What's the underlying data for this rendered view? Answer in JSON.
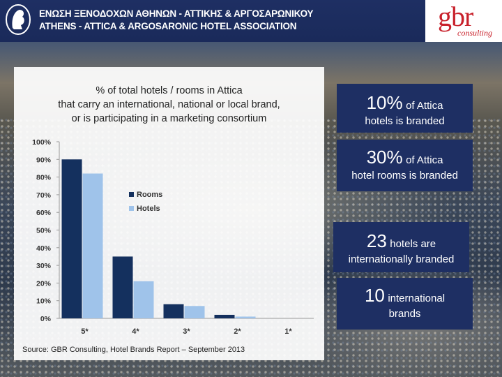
{
  "header": {
    "line1": "ΕΝΩΣΗ ΞΕΝΟΔΟΧΩΝ ΑΘΗΝΩΝ - ΑΤΤΙΚΗΣ & ΑΡΓΟΣΑΡΩΝΙΚΟΥ",
    "line2": "ATHENS - ATTICA & ARGOSARONIC HOTEL ASSOCIATION",
    "gbr_logo": "gbr",
    "gbr_sub": "consulting"
  },
  "chart_data": {
    "type": "bar",
    "title_lines": [
      "% of total hotels / rooms in Attica",
      "that carry an international, national or local brand,",
      "or is participating in a marketing consortium"
    ],
    "categories": [
      "5*",
      "4*",
      "3*",
      "2*",
      "1*"
    ],
    "series": [
      {
        "name": "Rooms",
        "values": [
          90,
          35,
          8,
          2,
          0
        ],
        "color": "#14305e"
      },
      {
        "name": "Hotels",
        "values": [
          82,
          21,
          7,
          1,
          0
        ],
        "color": "#9fc3ea"
      }
    ],
    "ylim": [
      0,
      100
    ],
    "yticks": [
      "0%",
      "10%",
      "20%",
      "30%",
      "40%",
      "50%",
      "60%",
      "70%",
      "80%",
      "90%",
      "100%"
    ],
    "legend": "top-center",
    "grid": false
  },
  "source": "Source: GBR Consulting, Hotel Brands Report – September 2013",
  "stats": [
    {
      "big": "10%",
      "small": "of Attica",
      "line2": "hotels is branded"
    },
    {
      "big": "30%",
      "small": "of Attica",
      "line2": "hotel rooms is branded"
    },
    {
      "big": "23",
      "small": "hotels are",
      "line2": "internationally branded"
    },
    {
      "big": "10",
      "small": "international",
      "line2": "brands"
    }
  ]
}
